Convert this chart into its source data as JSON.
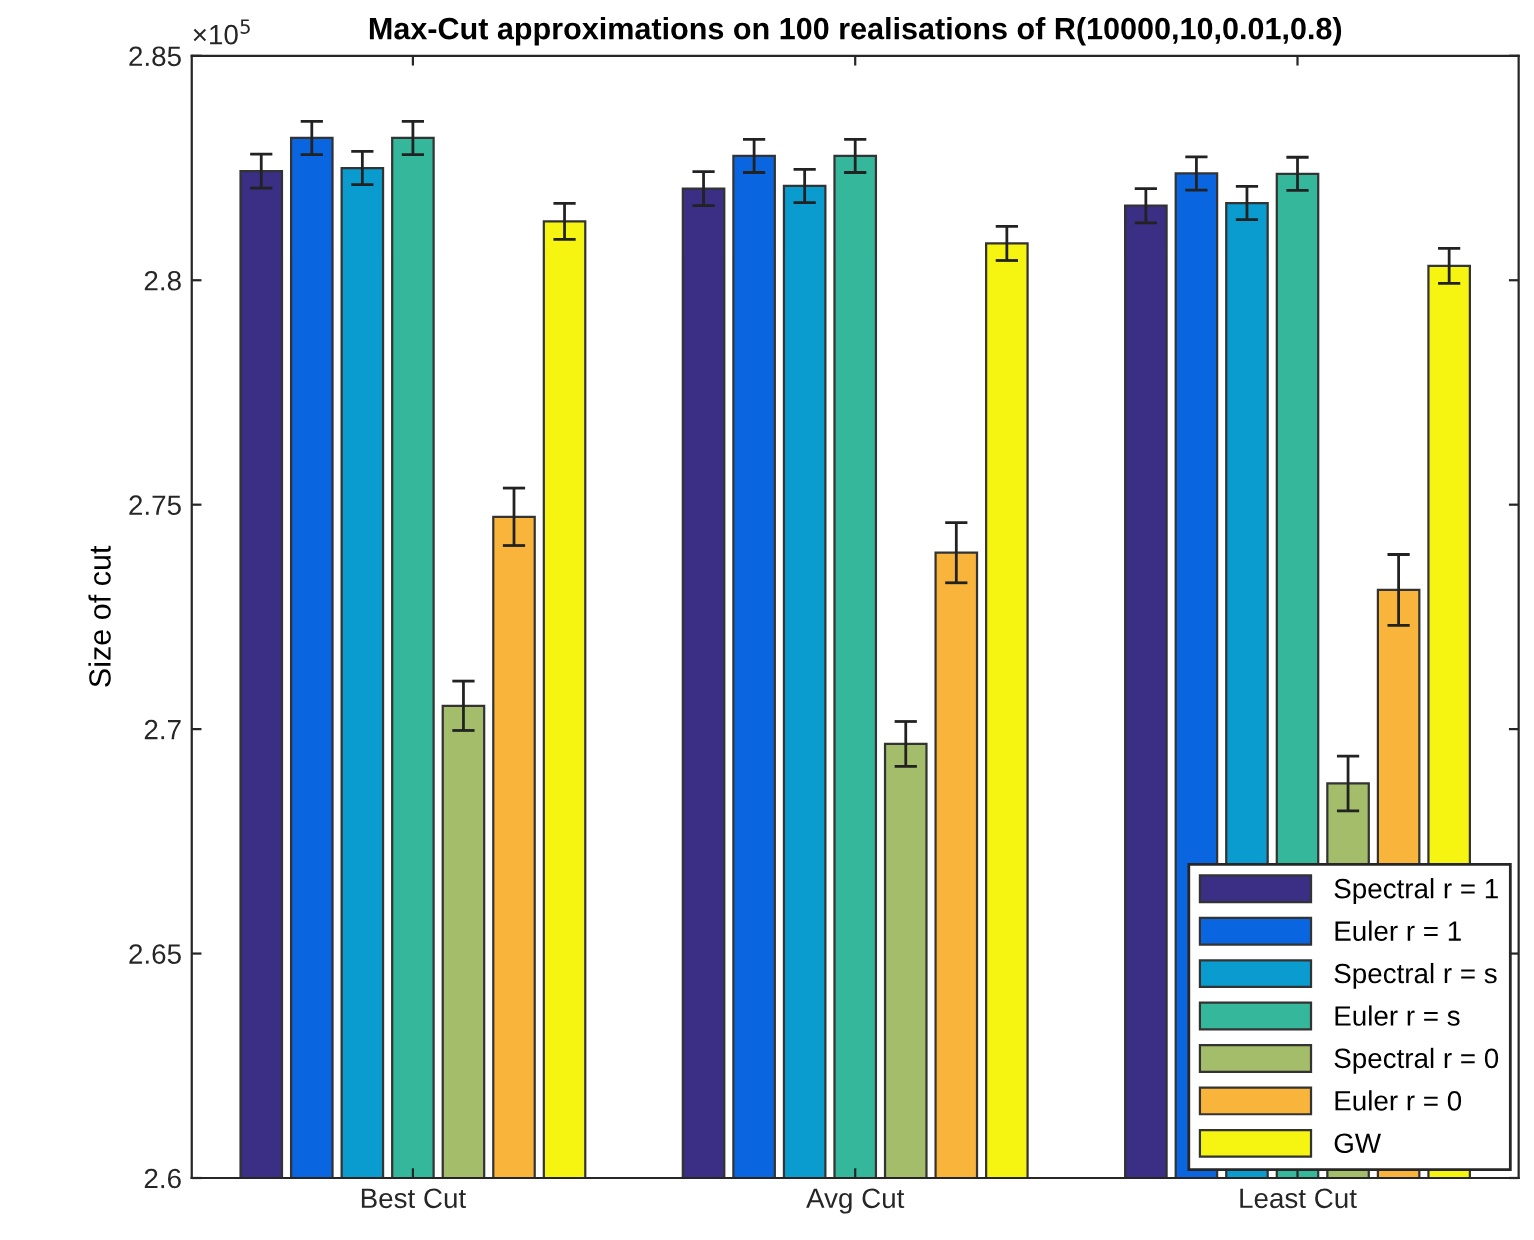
{
  "chart_data": {
    "type": "bar",
    "title": "Max-Cut approximations on 100 realisations of R(10000,10,0.01,0.8)",
    "ylabel": "Size of cut",
    "annotations": [
      "×10$^{5}$"
    ],
    "categories": [
      "Best Cut",
      "Avg Cut",
      "Least Cut"
    ],
    "series": [
      {
        "name": "Spectral r = 1",
        "color": "#3a2e85",
        "values": [
          2.8243,
          2.8204,
          2.8166
        ],
        "errors": [
          0.0038,
          0.0038,
          0.0038
        ]
      },
      {
        "name": "Euler r = 1",
        "color": "#0a66e0",
        "values": [
          2.8317,
          2.8277,
          2.8238
        ],
        "errors": [
          0.0037,
          0.0037,
          0.0037
        ]
      },
      {
        "name": "Spectral r = s",
        "color": "#0a9ccf",
        "values": [
          2.825,
          2.821,
          2.8172
        ],
        "errors": [
          0.0037,
          0.0037,
          0.0037
        ]
      },
      {
        "name": "Euler r = s",
        "color": "#35b79b",
        "values": [
          2.8317,
          2.8277,
          2.8237
        ],
        "errors": [
          0.0037,
          0.0037,
          0.0037
        ]
      },
      {
        "name": "Spectral r = 0",
        "color": "#a3bd6a",
        "values": [
          2.7052,
          2.6967,
          2.6879
        ],
        "errors": [
          0.0055,
          0.005,
          0.0061
        ]
      },
      {
        "name": "Euler r = 0",
        "color": "#f9b43b",
        "values": [
          2.7473,
          2.7393,
          2.731
        ],
        "errors": [
          0.0064,
          0.0067,
          0.0079
        ]
      },
      {
        "name": "GW",
        "color": "#f5f511",
        "values": [
          2.8131,
          2.8082,
          2.8032
        ],
        "errors": [
          0.004,
          0.0038,
          0.0039
        ]
      }
    ],
    "ylim": [
      2.6,
      2.85
    ],
    "yticks": [
      2.6,
      2.65,
      2.7,
      2.75,
      2.8,
      2.85
    ],
    "grid": false,
    "legend": "bottom right"
  }
}
